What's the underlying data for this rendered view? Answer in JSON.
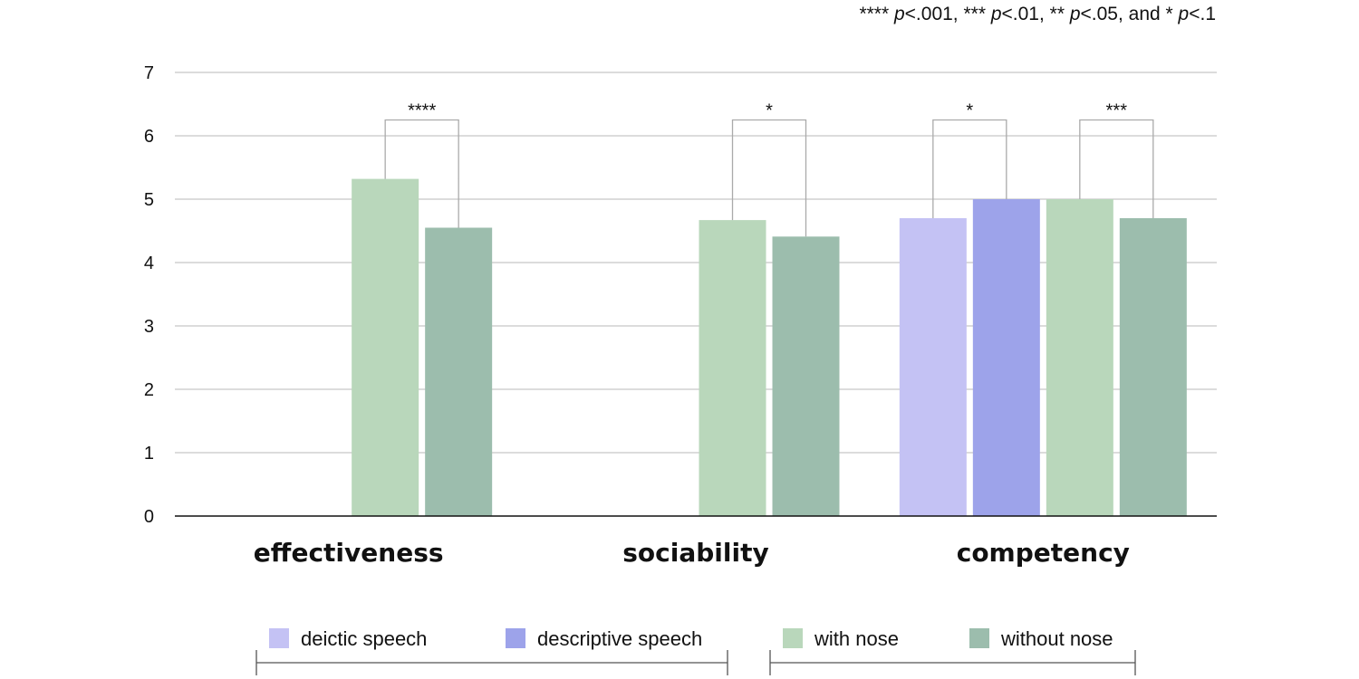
{
  "significance_note": {
    "parts": [
      {
        "text": "**** ",
        "italic": false
      },
      {
        "text": "p",
        "italic": true
      },
      {
        "text": "<.001, *** ",
        "italic": false
      },
      {
        "text": "p",
        "italic": true
      },
      {
        "text": "<.01, ** ",
        "italic": false
      },
      {
        "text": "p",
        "italic": true
      },
      {
        "text": "<.05, and * ",
        "italic": false
      },
      {
        "text": "p",
        "italic": true
      },
      {
        "text": "<.1",
        "italic": false
      }
    ]
  },
  "chart_data": {
    "type": "bar",
    "title": "",
    "xlabel": "",
    "ylabel": "",
    "ylim": [
      0,
      7
    ],
    "yticks": [
      "0",
      "1",
      "2",
      "3",
      "4",
      "5",
      "6",
      "7"
    ],
    "grid": true,
    "legend_position": "bottom",
    "categories": [
      "effectiveness",
      "sociability",
      "competency"
    ],
    "series": [
      {
        "name": "deictic speech",
        "color": "#c4c2f4",
        "values": [
          null,
          null,
          4.7
        ]
      },
      {
        "name": "descriptive speech",
        "color": "#9da3ea",
        "values": [
          null,
          null,
          5.0
        ]
      },
      {
        "name": "with nose",
        "color": "#b9d7bb",
        "values": [
          5.32,
          4.67,
          5.0
        ]
      },
      {
        "name": "without nose",
        "color": "#9cbdad",
        "values": [
          4.55,
          4.41,
          4.7
        ]
      }
    ],
    "significance": [
      {
        "category": "effectiveness",
        "between": [
          "with nose",
          "without nose"
        ],
        "label": "****"
      },
      {
        "category": "sociability",
        "between": [
          "with nose",
          "without nose"
        ],
        "label": "*"
      },
      {
        "category": "competency",
        "between": [
          "deictic speech",
          "descriptive speech"
        ],
        "label": "*"
      },
      {
        "category": "competency",
        "between": [
          "with nose",
          "without nose"
        ],
        "label": "***"
      }
    ],
    "legend_groups": [
      [
        "deictic speech",
        "descriptive speech"
      ],
      [
        "with nose",
        "without nose"
      ]
    ]
  }
}
